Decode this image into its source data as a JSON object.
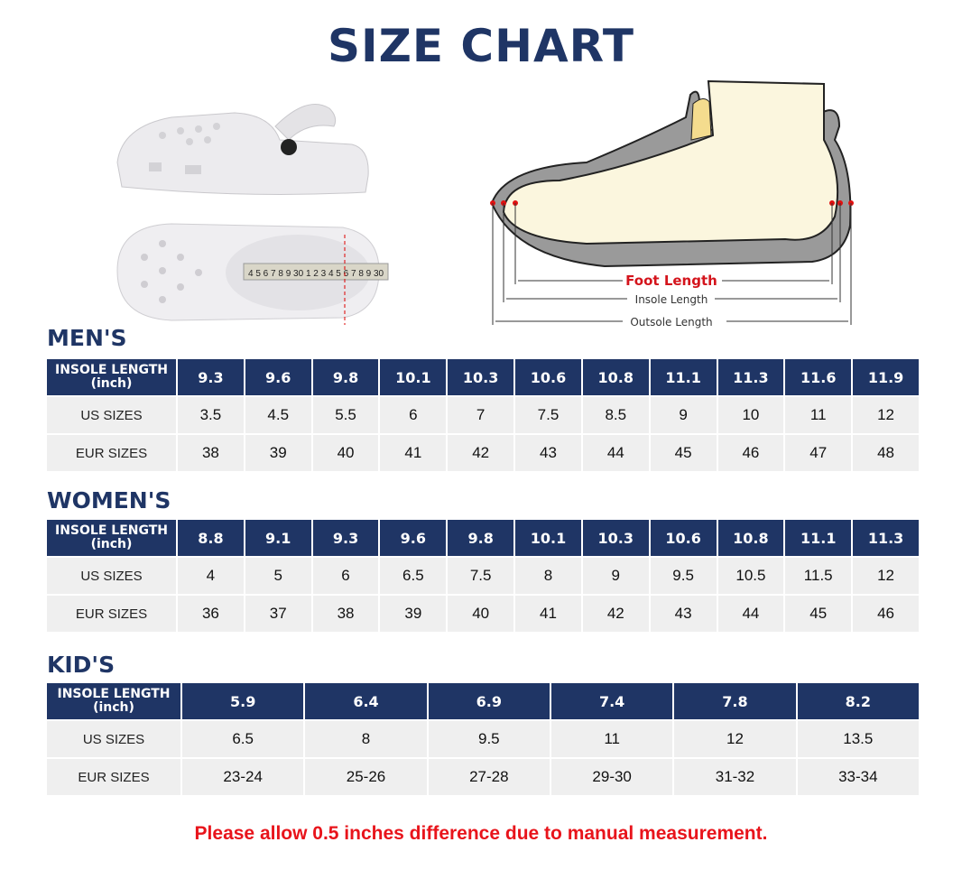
{
  "title": "SIZE CHART",
  "diagram": {
    "foot_length": "Foot Length",
    "insole_length": "Insole Length",
    "outsole_length": "Outsole Length",
    "tape_markings": "4 5 6 7 8 9 30 1 2 3 4 5 6 7 8 9 30"
  },
  "colors": {
    "header": "#1f3565",
    "row": "#efefef",
    "note": "#e8141b"
  },
  "mens": {
    "title": "MEN'S",
    "label_top": "INSOLE LENGTH",
    "label_unit": "(inch)",
    "us_label": "US SIZES",
    "eur_label": "EUR SIZES",
    "insole": [
      "9.3",
      "9.6",
      "9.8",
      "10.1",
      "10.3",
      "10.6",
      "10.8",
      "11.1",
      "11.3",
      "11.6",
      "11.9"
    ],
    "us": [
      "3.5",
      "4.5",
      "5.5",
      "6",
      "7",
      "7.5",
      "8.5",
      "9",
      "10",
      "11",
      "12"
    ],
    "eur": [
      "38",
      "39",
      "40",
      "41",
      "42",
      "43",
      "44",
      "45",
      "46",
      "47",
      "48"
    ]
  },
  "womens": {
    "title": "WOMEN'S",
    "label_top": "INSOLE LENGTH",
    "label_unit": "(inch)",
    "us_label": "US SIZES",
    "eur_label": "EUR SIZES",
    "insole": [
      "8.8",
      "9.1",
      "9.3",
      "9.6",
      "9.8",
      "10.1",
      "10.3",
      "10.6",
      "10.8",
      "11.1",
      "11.3"
    ],
    "us": [
      "4",
      "5",
      "6",
      "6.5",
      "7.5",
      "8",
      "9",
      "9.5",
      "10.5",
      "11.5",
      "12"
    ],
    "eur": [
      "36",
      "37",
      "38",
      "39",
      "40",
      "41",
      "42",
      "43",
      "44",
      "45",
      "46"
    ]
  },
  "kids": {
    "title": "KID'S",
    "label_top": "INSOLE LENGTH",
    "label_unit": "(inch)",
    "us_label": "US SIZES",
    "eur_label": "EUR SIZES",
    "insole": [
      "5.9",
      "6.4",
      "6.9",
      "7.4",
      "7.8",
      "8.2"
    ],
    "us": [
      "6.5",
      "8",
      "9.5",
      "11",
      "12",
      "13.5"
    ],
    "eur": [
      "23-24",
      "25-26",
      "27-28",
      "29-30",
      "31-32",
      "33-34"
    ]
  },
  "note": "Please allow 0.5 inches difference due to manual measurement."
}
